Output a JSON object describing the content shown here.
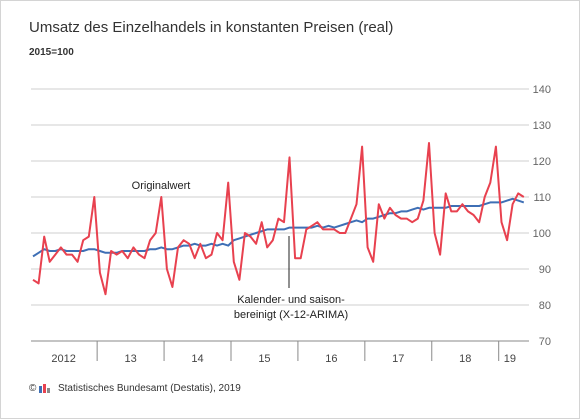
{
  "chart_data": {
    "type": "line",
    "title": "Umsatz des Einzelhandels in konstanten Preisen (real)",
    "subtitle": "2015=100",
    "ylim": [
      70,
      140
    ],
    "y_ticks": [
      70,
      80,
      90,
      100,
      110,
      120,
      130,
      140
    ],
    "x_start": "2012-01",
    "x_labels": [
      "2012",
      "13",
      "14",
      "15",
      "16",
      "17",
      "18",
      "19"
    ],
    "grid": true,
    "colors": {
      "original": "#e8414f",
      "adjusted": "#3e6fb5",
      "grid": "#cfcfcf",
      "axis": "#8a8a8a"
    },
    "annotations": {
      "original": "Originalwert",
      "adjusted_line1": "Kalender- und saison-",
      "adjusted_line2": "bereinigt (X-12-ARIMA)"
    },
    "series": [
      {
        "name": "Originalwert",
        "values": [
          87,
          86,
          99,
          92,
          94,
          96,
          94,
          94,
          92,
          98,
          99,
          110,
          89,
          83,
          95,
          94,
          95,
          93,
          96,
          94,
          93,
          98,
          100,
          110,
          90,
          85,
          96,
          98,
          97,
          93,
          97,
          93,
          94,
          100,
          98,
          114,
          92,
          87,
          100,
          99,
          97,
          103,
          96,
          98,
          104,
          103,
          121,
          93,
          93,
          101,
          102,
          103,
          101,
          101,
          101,
          100,
          100,
          104,
          108,
          124,
          96,
          92,
          108,
          104,
          107,
          105,
          104,
          104,
          103,
          104,
          109,
          125,
          100,
          94,
          111,
          106,
          106,
          108,
          106,
          105,
          103,
          110,
          114,
          124,
          103,
          98,
          108,
          111,
          110
        ]
      },
      {
        "name": "Kalender- und saisonbereinigt (X-12-ARIMA)",
        "values": [
          93.5,
          94.5,
          95.5,
          95,
          95,
          95.5,
          95,
          95,
          95,
          95,
          95.5,
          95.5,
          95,
          94.5,
          94.5,
          94.5,
          95,
          95,
          95,
          95,
          95,
          95.5,
          95.5,
          96,
          95.5,
          95.5,
          96,
          96.5,
          96.5,
          97,
          96.5,
          96.5,
          97,
          96.5,
          97,
          96.5,
          98,
          98.5,
          99,
          99.5,
          100,
          100.5,
          101,
          101,
          101,
          101,
          101.5,
          101.5,
          101.5,
          101.5,
          101.5,
          102,
          101.5,
          102,
          101.5,
          102,
          102.5,
          103,
          103.5,
          103,
          104,
          104,
          104.5,
          105,
          105.5,
          105.5,
          106,
          106,
          106.5,
          107,
          106.5,
          107,
          107,
          107,
          107,
          107.5,
          107.5,
          107.5,
          107.5,
          107.5,
          107.5,
          108,
          108.5,
          108.5,
          108.5,
          109,
          109.5,
          109,
          108.5
        ]
      }
    ]
  },
  "footer": {
    "copyright": "©",
    "source": "Statistisches Bundesamt (Destatis), 2019"
  }
}
